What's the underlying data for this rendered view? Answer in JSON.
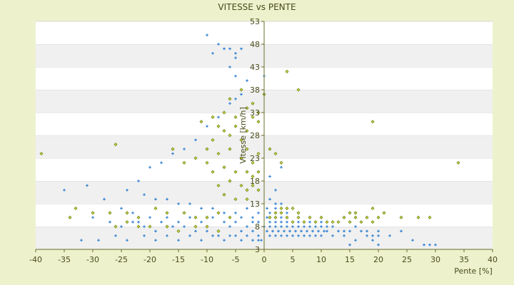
{
  "chart_data": {
    "type": "scatter",
    "title": "VITESSE vs PENTE",
    "xlabel": "Pente [%]",
    "ylabel": "Vitesse [km/h]",
    "xlim": [
      -40,
      40
    ],
    "ylim": [
      3,
      53
    ],
    "xticks": [
      -40,
      -35,
      -30,
      -25,
      -20,
      -15,
      -10,
      -5,
      0,
      5,
      10,
      15,
      20,
      25,
      30,
      35,
      40
    ],
    "yticks": [
      3,
      8,
      13,
      18,
      23,
      28,
      33,
      38,
      43,
      48,
      53
    ],
    "grid": true,
    "legend": "none",
    "series": [
      {
        "color": "#2e7fd0",
        "marker": "plus",
        "points": [
          [
            -10,
            50
          ],
          [
            -9,
            46
          ],
          [
            -8,
            48
          ],
          [
            -7,
            47
          ],
          [
            -6,
            47
          ],
          [
            -5,
            46
          ],
          [
            -5,
            45
          ],
          [
            -4,
            47
          ],
          [
            -6,
            43
          ],
          [
            -5,
            41
          ],
          [
            -3,
            40
          ],
          [
            -4,
            37
          ],
          [
            -5,
            36
          ],
          [
            -6,
            35
          ],
          [
            -8,
            32
          ],
          [
            -10,
            30
          ],
          [
            -12,
            27
          ],
          [
            -14,
            25
          ],
          [
            -16,
            24
          ],
          [
            -18,
            22
          ],
          [
            -20,
            21
          ],
          [
            -22,
            18
          ],
          [
            -24,
            16
          ],
          [
            -21,
            15
          ],
          [
            -19,
            14
          ],
          [
            -17,
            14
          ],
          [
            -15,
            13
          ],
          [
            -13,
            13
          ],
          [
            -11,
            12
          ],
          [
            -9,
            12
          ],
          [
            -7,
            11
          ],
          [
            -5,
            11
          ],
          [
            -3,
            12
          ],
          [
            -2,
            10
          ],
          [
            -1,
            9
          ],
          [
            -35,
            16
          ],
          [
            -31,
            17
          ],
          [
            -28,
            14
          ],
          [
            -25,
            12
          ],
          [
            -23,
            11
          ],
          [
            -22,
            9
          ],
          [
            -20,
            10
          ],
          [
            -18,
            9
          ],
          [
            -16,
            8
          ],
          [
            -14,
            8
          ],
          [
            -12,
            7
          ],
          [
            -10,
            7
          ],
          [
            -8,
            6
          ],
          [
            -6,
            6
          ],
          [
            -4,
            7
          ],
          [
            -3,
            8
          ],
          [
            -2,
            7
          ],
          [
            -1,
            6
          ],
          [
            -0.5,
            5
          ],
          [
            -32,
            5
          ],
          [
            -29,
            5
          ],
          [
            -26,
            6
          ],
          [
            -24,
            5
          ],
          [
            -21,
            6
          ],
          [
            -19,
            5
          ],
          [
            -17,
            6
          ],
          [
            -15,
            5
          ],
          [
            -13,
            6
          ],
          [
            -11,
            5
          ],
          [
            -9,
            6
          ],
          [
            -7,
            5
          ],
          [
            -5,
            6
          ],
          [
            -4,
            5
          ],
          [
            -3,
            6
          ],
          [
            -2,
            5
          ],
          [
            -1,
            5
          ],
          [
            -30,
            10
          ],
          [
            -27,
            9
          ],
          [
            -25,
            8
          ],
          [
            -23,
            9
          ],
          [
            -21,
            8
          ],
          [
            -19,
            7
          ],
          [
            -17,
            10
          ],
          [
            -15,
            9
          ],
          [
            -13,
            10
          ],
          [
            -11,
            9
          ],
          [
            -9,
            10
          ],
          [
            -7,
            9
          ],
          [
            -6,
            8
          ],
          [
            -5,
            9
          ],
          [
            -4,
            10
          ],
          [
            -2,
            9
          ],
          [
            -1,
            11
          ],
          [
            0,
            8
          ],
          [
            0.5,
            7
          ],
          [
            1,
            8
          ],
          [
            1.5,
            7
          ],
          [
            2,
            8
          ],
          [
            2.5,
            7
          ],
          [
            3,
            8
          ],
          [
            3.5,
            7
          ],
          [
            4,
            8
          ],
          [
            4.5,
            7
          ],
          [
            5,
            8
          ],
          [
            5.5,
            7
          ],
          [
            6,
            8
          ],
          [
            6.5,
            7
          ],
          [
            7,
            8
          ],
          [
            7.5,
            7
          ],
          [
            8,
            8
          ],
          [
            8.5,
            7
          ],
          [
            9,
            8
          ],
          [
            9.5,
            7
          ],
          [
            10,
            8
          ],
          [
            10.5,
            7
          ],
          [
            11,
            7
          ],
          [
            1,
            9
          ],
          [
            2,
            9
          ],
          [
            3,
            9
          ],
          [
            4,
            9
          ],
          [
            5,
            9
          ],
          [
            6,
            9
          ],
          [
            7,
            9
          ],
          [
            8,
            9
          ],
          [
            9,
            9
          ],
          [
            10,
            9
          ],
          [
            11,
            8
          ],
          [
            12,
            8
          ],
          [
            1,
            6
          ],
          [
            2,
            6
          ],
          [
            3,
            6
          ],
          [
            4,
            6
          ],
          [
            5,
            6
          ],
          [
            6,
            6
          ],
          [
            7,
            6
          ],
          [
            8,
            6
          ],
          [
            9,
            6
          ],
          [
            10,
            6
          ],
          [
            12,
            6
          ],
          [
            14,
            6
          ],
          [
            16,
            5
          ],
          [
            18,
            6
          ],
          [
            19,
            5
          ],
          [
            20,
            6
          ],
          [
            0.5,
            10
          ],
          [
            1,
            11
          ],
          [
            2,
            12
          ],
          [
            3,
            10
          ],
          [
            4,
            11
          ],
          [
            2,
            13
          ],
          [
            3,
            13
          ],
          [
            1,
            14
          ],
          [
            0.5,
            12
          ],
          [
            13,
            7
          ],
          [
            14,
            7
          ],
          [
            15,
            7
          ],
          [
            16,
            8
          ],
          [
            17,
            7
          ],
          [
            18,
            7
          ],
          [
            19,
            6
          ],
          [
            20,
            7
          ],
          [
            22,
            6
          ],
          [
            24,
            7
          ],
          [
            3,
            21
          ],
          [
            2,
            16
          ],
          [
            1,
            19
          ],
          [
            0,
            41
          ],
          [
            26,
            5
          ],
          [
            28,
            4
          ],
          [
            29,
            4
          ],
          [
            30,
            4
          ],
          [
            15,
            4
          ],
          [
            20,
            4
          ]
        ]
      },
      {
        "color": "#6e8a1a",
        "marker": "diamond",
        "points": [
          [
            -39,
            24
          ],
          [
            -26,
            26
          ],
          [
            -16,
            25
          ],
          [
            -14,
            22
          ],
          [
            -12,
            23
          ],
          [
            -10,
            25
          ],
          [
            -9,
            27
          ],
          [
            -8,
            30
          ],
          [
            -7,
            29
          ],
          [
            -6,
            28
          ],
          [
            -5,
            30
          ],
          [
            -4,
            27
          ],
          [
            -3,
            29
          ],
          [
            -2,
            32
          ],
          [
            -1,
            31
          ],
          [
            -11,
            31
          ],
          [
            -9,
            32
          ],
          [
            -7,
            33
          ],
          [
            -5,
            32
          ],
          [
            -3,
            34
          ],
          [
            -2,
            35
          ],
          [
            -1,
            33
          ],
          [
            -4,
            38
          ],
          [
            -6,
            36
          ],
          [
            -10,
            22
          ],
          [
            -8,
            24
          ],
          [
            -6,
            25
          ],
          [
            -4,
            23
          ],
          [
            -3,
            25
          ],
          [
            -2,
            22
          ],
          [
            -1,
            24
          ],
          [
            -9,
            20
          ],
          [
            -7,
            21
          ],
          [
            -5,
            20
          ],
          [
            -3,
            20
          ],
          [
            -2,
            19
          ],
          [
            -1,
            20
          ],
          [
            -8,
            17
          ],
          [
            -6,
            18
          ],
          [
            -4,
            17
          ],
          [
            -3,
            16
          ],
          [
            -2,
            17
          ],
          [
            -1,
            16
          ],
          [
            -7,
            15
          ],
          [
            -5,
            14
          ],
          [
            -3,
            14
          ],
          [
            -33,
            12
          ],
          [
            -30,
            11
          ],
          [
            -27,
            11
          ],
          [
            -24,
            11
          ],
          [
            -22,
            10
          ],
          [
            -19,
            12
          ],
          [
            -17,
            11
          ],
          [
            -14,
            11
          ],
          [
            -12,
            10
          ],
          [
            -10,
            10
          ],
          [
            -8,
            11
          ],
          [
            -6,
            10
          ],
          [
            -34,
            10
          ],
          [
            -26,
            8
          ],
          [
            -24,
            9
          ],
          [
            -22,
            8
          ],
          [
            -20,
            8
          ],
          [
            -17,
            8
          ],
          [
            -15,
            7
          ],
          [
            -12,
            8
          ],
          [
            -10,
            8
          ],
          [
            -8,
            7
          ],
          [
            1,
            25
          ],
          [
            2,
            24
          ],
          [
            3,
            22
          ],
          [
            4,
            42
          ],
          [
            6,
            38
          ],
          [
            19,
            31
          ],
          [
            34,
            22
          ],
          [
            0,
            37
          ],
          [
            1,
            10
          ],
          [
            2,
            10
          ],
          [
            3,
            11
          ],
          [
            4,
            10
          ],
          [
            5,
            9
          ],
          [
            6,
            10
          ],
          [
            7,
            9
          ],
          [
            8,
            10
          ],
          [
            9,
            9
          ],
          [
            10,
            10
          ],
          [
            11,
            9
          ],
          [
            12,
            9
          ],
          [
            13,
            9
          ],
          [
            14,
            10
          ],
          [
            15,
            9
          ],
          [
            16,
            10
          ],
          [
            17,
            9
          ],
          [
            18,
            10
          ],
          [
            19,
            9
          ],
          [
            20,
            10
          ],
          [
            2,
            11
          ],
          [
            3,
            12
          ],
          [
            4,
            12
          ],
          [
            5,
            12
          ],
          [
            6,
            11
          ],
          [
            15,
            11
          ],
          [
            16,
            11
          ],
          [
            19,
            12
          ],
          [
            21,
            11
          ],
          [
            24,
            10
          ],
          [
            27,
            10
          ],
          [
            29,
            10
          ]
        ]
      }
    ]
  }
}
